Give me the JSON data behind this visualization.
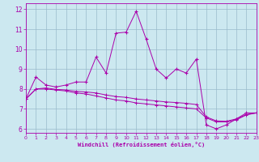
{
  "xlabel": "Windchill (Refroidissement éolien,°C)",
  "xlim": [
    0,
    23
  ],
  "ylim": [
    5.8,
    12.3
  ],
  "yticks": [
    6,
    7,
    8,
    9,
    10,
    11,
    12
  ],
  "xticks": [
    0,
    1,
    2,
    3,
    4,
    5,
    6,
    7,
    8,
    9,
    10,
    11,
    12,
    13,
    14,
    15,
    16,
    17,
    18,
    19,
    20,
    21,
    22,
    23
  ],
  "bg_color": "#cce8f0",
  "line_color": "#aa00aa",
  "grid_color": "#99bbcc",
  "series1_y": [
    7.5,
    8.6,
    8.2,
    8.1,
    8.2,
    8.35,
    8.35,
    9.6,
    8.8,
    10.8,
    10.85,
    11.9,
    10.5,
    9.0,
    8.55,
    9.0,
    8.8,
    9.5,
    6.2,
    6.0,
    6.2,
    6.5,
    6.8,
    6.8
  ],
  "series2_y": [
    7.5,
    8.0,
    8.0,
    7.95,
    7.9,
    7.8,
    7.75,
    7.65,
    7.55,
    7.45,
    7.4,
    7.3,
    7.25,
    7.2,
    7.15,
    7.1,
    7.05,
    7.0,
    6.55,
    6.35,
    6.35,
    6.45,
    6.7,
    6.8
  ],
  "series3_y": [
    7.5,
    8.0,
    8.05,
    7.98,
    7.95,
    7.88,
    7.85,
    7.8,
    7.7,
    7.62,
    7.58,
    7.5,
    7.45,
    7.4,
    7.35,
    7.32,
    7.28,
    7.22,
    6.6,
    6.4,
    6.38,
    6.5,
    6.72,
    6.8
  ]
}
